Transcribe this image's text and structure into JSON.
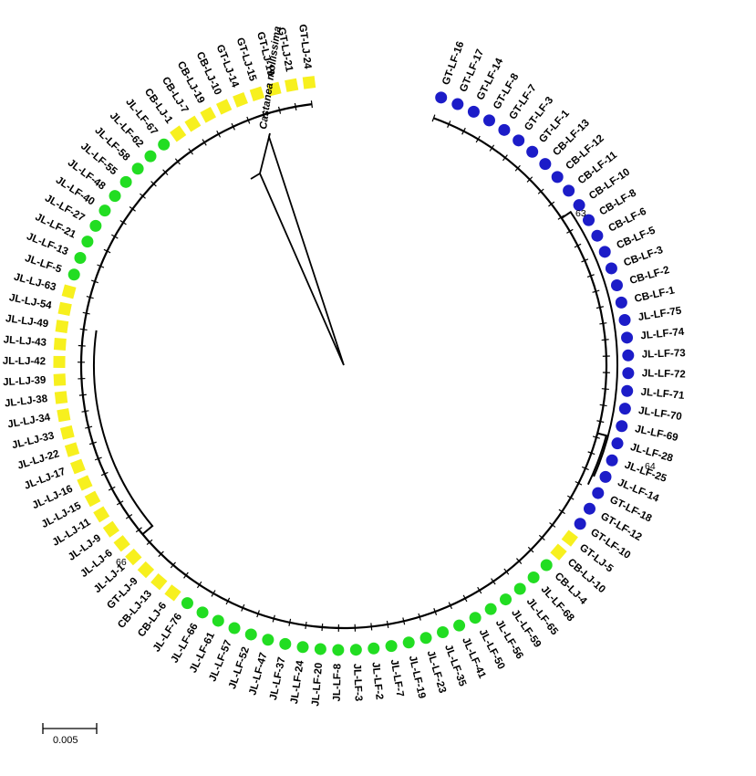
{
  "outgroup": "Castanea mollissima",
  "scale_label": "0.005",
  "colors": {
    "blue": "#1c1cc8",
    "green": "#22dd22",
    "yellow": "#f7f01e"
  },
  "groups": [
    {
      "shape": "circle",
      "color": "blue",
      "labels": [
        "GT-LF-16",
        "GT-LF-17",
        "GT-LF-14",
        "GT-LF-8",
        "GT-LF-7",
        "GT-LF-3",
        "GT-LF-1",
        "CB-LF-13",
        "CB-LF-12",
        "CB-LF-11",
        "CB-LF-10",
        "CB-LF-8",
        "CB-LF-6",
        "CB-LF-5",
        "CB-LF-3",
        "CB-LF-2",
        "CB-LF-1",
        "JL-LF-75",
        "JL-LF-74",
        "JL-LF-73",
        "JL-LF-72",
        "JL-LF-71",
        "JL-LF-70",
        "JL-LF-69",
        "JL-LF-28",
        "JL-LF-25",
        "JL-LF-14",
        "GT-LF-18",
        "GT-LF-12",
        "GT-LF-10"
      ]
    },
    {
      "shape": "square",
      "color": "yellow",
      "labels": [
        "GT-LJ-5",
        "CB-LJ-10"
      ]
    },
    {
      "shape": "circle",
      "color": "green",
      "labels": [
        "CB-LJ-4",
        "JL-LF-68",
        "JL-LF-65",
        "JL-LF-59",
        "JL-LF-56",
        "JL-LF-50",
        "JL-LF-41",
        "JL-LF-35",
        "JL-LF-23",
        "JL-LF-19",
        "JL-LF-7",
        "JL-LF-2",
        "JL-LF-3",
        "JL-LF-8",
        "JL-LF-20",
        "JL-LF-24",
        "JL-LF-37",
        "JL-LF-47",
        "JL-LF-52",
        "JL-LF-57",
        "JL-LF-61",
        "JL-LF-66",
        "JL-LF-76"
      ]
    },
    {
      "shape": "square",
      "color": "yellow",
      "labels": [
        "CB-LJ-6",
        "CB-LJ-13",
        "GT-LJ-9",
        "JL-LJ-1",
        "JL-LJ-6",
        "JL-LJ-9",
        "JL-LJ-11",
        "JL-LJ-15",
        "JL-LJ-16",
        "JL-LJ-17",
        "JL-LJ-22",
        "JL-LJ-33",
        "JL-LJ-34",
        "JL-LJ-38",
        "JL-LJ-39",
        "JL-LJ-42",
        "JL-LJ-43",
        "JL-LJ-49",
        "JL-LJ-54",
        "JL-LJ-63"
      ]
    },
    {
      "shape": "circle",
      "color": "green",
      "labels": [
        "JL-LF-5",
        "JL-LF-13",
        "JL-LF-21",
        "JL-LF-27",
        "JL-LF-40",
        "JL-LF-48",
        "JL-LF-55",
        "JL-LF-58",
        "JL-LF-62",
        "JL-LF-67"
      ]
    },
    {
      "shape": "square",
      "color": "yellow",
      "labels": [
        "CB-LJ-1",
        "CB-LJ-7",
        "CB-LJ-19",
        "CB-LJ-10",
        "GT-LJ-14",
        "GT-LJ-15",
        "GT-LJ-19",
        "GT-LJ-21",
        "GT-LJ-24"
      ]
    }
  ],
  "bootstrap": [
    {
      "label": "63"
    },
    {
      "label": "64"
    },
    {
      "label": "66"
    }
  ]
}
